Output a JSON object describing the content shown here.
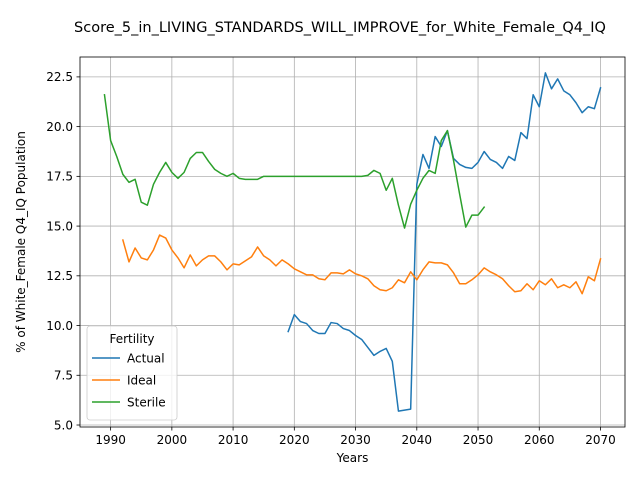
{
  "chart_data": {
    "type": "line",
    "title": "Score_5_in_LIVING_STANDARDS_WILL_IMPROVE_for_White_Female_Q4_IQ",
    "xlabel": "Years",
    "ylabel": "% of White_Female Q4_IQ Population",
    "xlim": [
      1985,
      2074
    ],
    "ylim": [
      4.9,
      23.5
    ],
    "xticks": [
      1990,
      2000,
      2010,
      2020,
      2030,
      2040,
      2050,
      2060,
      2070
    ],
    "yticks": [
      5.0,
      7.5,
      10.0,
      12.5,
      15.0,
      17.5,
      20.0,
      22.5
    ],
    "xtick_labels": [
      "1990",
      "2000",
      "2010",
      "2020",
      "2030",
      "2040",
      "2050",
      "2060",
      "2070"
    ],
    "ytick_labels": [
      "5.0",
      "7.5",
      "10.0",
      "12.5",
      "15.0",
      "17.5",
      "20.0",
      "22.5"
    ],
    "grid": true,
    "legend": {
      "title": "Fertility",
      "placement": "lower-left"
    },
    "series": [
      {
        "name": "Actual",
        "color": "#1f77b4",
        "x": [
          2019,
          2020,
          2021,
          2022,
          2023,
          2024,
          2025,
          2026,
          2027,
          2028,
          2029,
          2030,
          2031,
          2032,
          2033,
          2034,
          2035,
          2036,
          2037,
          2038,
          2039,
          2040,
          2041,
          2042,
          2043,
          2044,
          2045,
          2046,
          2047,
          2048,
          2049,
          2050,
          2051,
          2052,
          2053,
          2054,
          2055,
          2056,
          2057,
          2058,
          2059,
          2060,
          2061,
          2062,
          2063,
          2064,
          2065,
          2066,
          2067,
          2068,
          2069,
          2070
        ],
        "y": [
          9.7,
          10.55,
          10.2,
          10.1,
          9.75,
          9.6,
          9.6,
          10.15,
          10.1,
          9.85,
          9.75,
          9.5,
          9.3,
          8.9,
          8.5,
          8.7,
          8.85,
          8.2,
          5.7,
          5.75,
          5.8,
          17.1,
          18.6,
          17.9,
          19.5,
          19.0,
          19.8,
          18.4,
          18.1,
          17.95,
          17.9,
          18.2,
          18.75,
          18.35,
          18.2,
          17.9,
          18.5,
          18.3,
          19.7,
          19.4,
          21.6,
          21.0,
          22.7,
          21.9,
          22.4,
          21.8,
          21.6,
          21.2,
          20.7,
          21.0,
          20.9,
          21.95
        ]
      },
      {
        "name": "Ideal",
        "color": "#ff7f0e",
        "x": [
          1992,
          1993,
          1994,
          1995,
          1996,
          1997,
          1998,
          1999,
          2000,
          2001,
          2002,
          2003,
          2004,
          2005,
          2006,
          2007,
          2008,
          2009,
          2010,
          2011,
          2012,
          2013,
          2014,
          2015,
          2016,
          2017,
          2018,
          2019,
          2020,
          2021,
          2022,
          2023,
          2024,
          2025,
          2026,
          2027,
          2028,
          2029,
          2030,
          2031,
          2032,
          2033,
          2034,
          2035,
          2036,
          2037,
          2038,
          2039,
          2040,
          2041,
          2042,
          2043,
          2044,
          2045,
          2046,
          2047,
          2048,
          2049,
          2050,
          2051,
          2052,
          2053,
          2054,
          2055,
          2056,
          2057,
          2058,
          2059,
          2060,
          2061,
          2062,
          2063,
          2064,
          2065,
          2066,
          2067,
          2068,
          2069,
          2070
        ],
        "y": [
          14.3,
          13.2,
          13.9,
          13.4,
          13.3,
          13.8,
          14.55,
          14.4,
          13.8,
          13.4,
          12.9,
          13.55,
          13.0,
          13.3,
          13.5,
          13.5,
          13.2,
          12.8,
          13.1,
          13.05,
          13.25,
          13.45,
          13.95,
          13.5,
          13.3,
          13.0,
          13.3,
          13.1,
          12.85,
          12.7,
          12.55,
          12.55,
          12.35,
          12.3,
          12.65,
          12.65,
          12.6,
          12.8,
          12.6,
          12.5,
          12.35,
          12.0,
          11.8,
          11.75,
          11.9,
          12.3,
          12.15,
          12.7,
          12.3,
          12.8,
          13.2,
          13.15,
          13.15,
          13.05,
          12.65,
          12.1,
          12.1,
          12.3,
          12.55,
          12.9,
          12.7,
          12.55,
          12.35,
          12.0,
          11.7,
          11.75,
          12.1,
          11.8,
          12.25,
          12.05,
          12.35,
          11.9,
          12.05,
          11.9,
          12.2,
          11.6,
          12.45,
          12.25,
          13.35
        ]
      },
      {
        "name": "Sterile",
        "color": "#2ca02c",
        "x": [
          1989,
          1990,
          1991,
          1992,
          1993,
          1994,
          1995,
          1996,
          1997,
          1998,
          1999,
          2000,
          2001,
          2002,
          2003,
          2004,
          2005,
          2006,
          2007,
          2008,
          2009,
          2010,
          2011,
          2012,
          2013,
          2014,
          2015,
          2016,
          2017,
          2018,
          2019,
          2020,
          2021,
          2022,
          2023,
          2024,
          2025,
          2026,
          2027,
          2028,
          2029,
          2030,
          2031,
          2032,
          2033,
          2034,
          2035,
          2036,
          2037,
          2038,
          2039,
          2040,
          2041,
          2042,
          2043,
          2044,
          2045,
          2046,
          2047,
          2048,
          2049,
          2050,
          2051
        ],
        "y": [
          21.6,
          19.3,
          18.5,
          17.6,
          17.2,
          17.35,
          16.2,
          16.05,
          17.1,
          17.7,
          18.2,
          17.7,
          17.4,
          17.7,
          18.4,
          18.7,
          18.7,
          18.25,
          17.85,
          17.65,
          17.5,
          17.65,
          17.4,
          17.35,
          17.35,
          17.35,
          17.5,
          17.5,
          17.5,
          17.5,
          17.5,
          17.5,
          17.5,
          17.5,
          17.5,
          17.5,
          17.5,
          17.5,
          17.5,
          17.5,
          17.5,
          17.5,
          17.5,
          17.55,
          17.8,
          17.65,
          16.8,
          17.4,
          16.05,
          14.9,
          16.1,
          16.8,
          17.4,
          17.8,
          17.65,
          19.3,
          19.8,
          18.3,
          16.6,
          14.95,
          15.55,
          15.55,
          15.95
        ]
      }
    ]
  }
}
